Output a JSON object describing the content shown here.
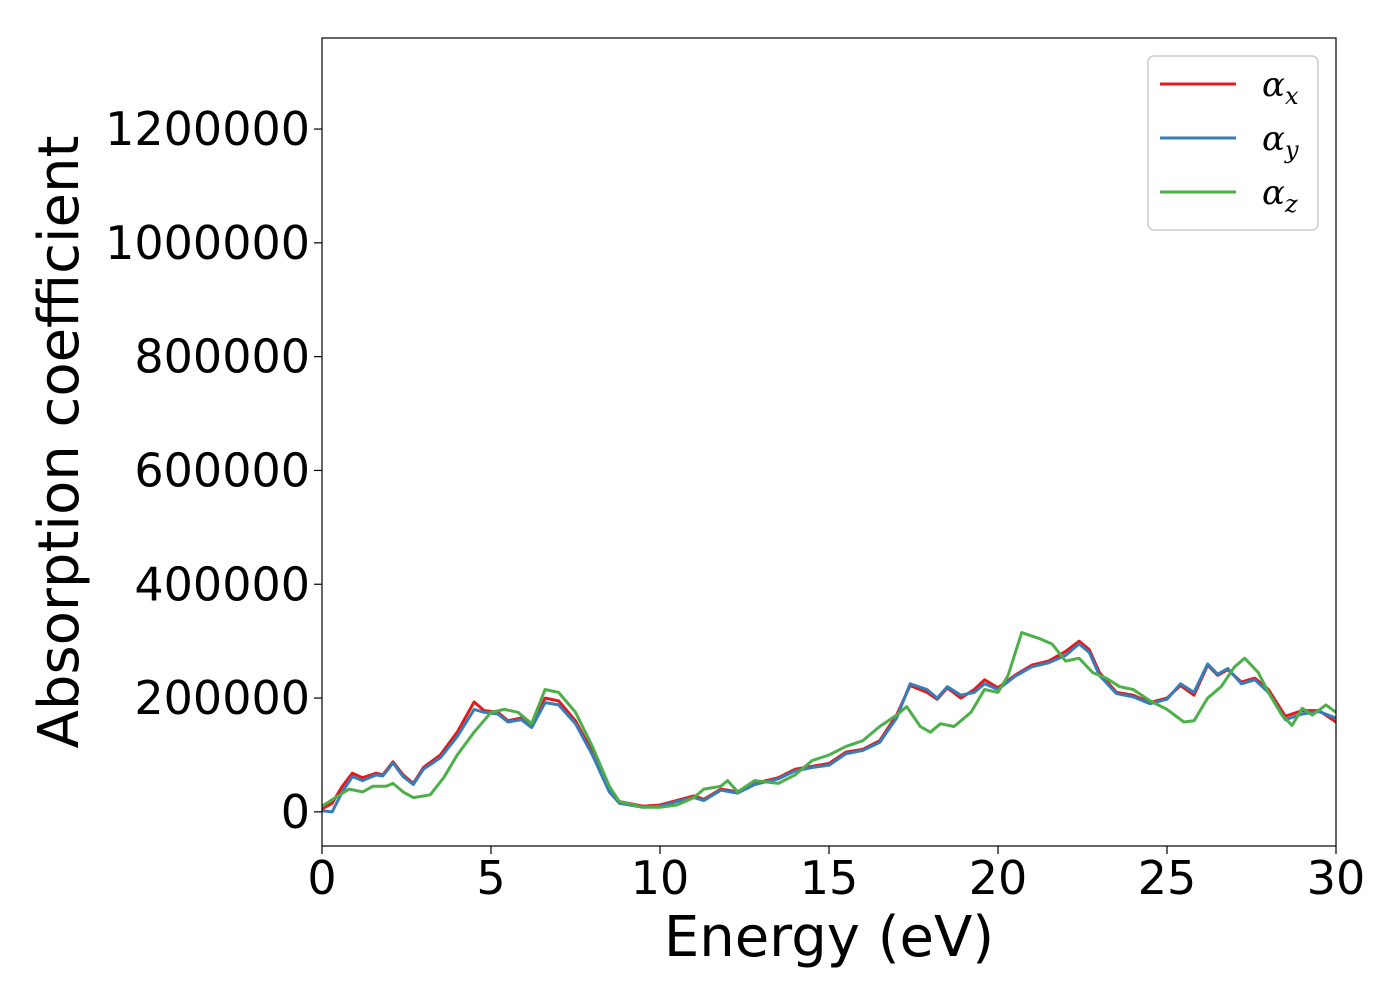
{
  "chart_data": {
    "type": "line",
    "title": "",
    "xlabel": "Energy (eV)",
    "ylabel": "Absorption coefficient",
    "xlim": [
      0,
      30
    ],
    "ylim": [
      -60000,
      1360000
    ],
    "x_ticks": [
      "0",
      "5",
      "10",
      "15",
      "20",
      "25",
      "30"
    ],
    "y_ticks": [
      "0",
      "200000",
      "400000",
      "600000",
      "800000",
      "1000000",
      "1200000"
    ],
    "grid": false,
    "legend_position": "top-right",
    "series": [
      {
        "name": "α_x",
        "label_base": "α",
        "label_sub": "x",
        "color": "#e41a1c",
        "points": [
          [
            0,
            5000
          ],
          [
            0.3,
            15000
          ],
          [
            0.6,
            45000
          ],
          [
            0.9,
            68000
          ],
          [
            1.2,
            60000
          ],
          [
            1.6,
            68000
          ],
          [
            1.8,
            65000
          ],
          [
            2.1,
            88000
          ],
          [
            2.4,
            65000
          ],
          [
            2.7,
            50000
          ],
          [
            3.0,
            78000
          ],
          [
            3.5,
            100000
          ],
          [
            4.0,
            140000
          ],
          [
            4.5,
            193000
          ],
          [
            4.8,
            178000
          ],
          [
            5.2,
            175000
          ],
          [
            5.5,
            160000
          ],
          [
            5.9,
            165000
          ],
          [
            6.2,
            150000
          ],
          [
            6.6,
            200000
          ],
          [
            7.0,
            195000
          ],
          [
            7.5,
            160000
          ],
          [
            8.0,
            105000
          ],
          [
            8.5,
            40000
          ],
          [
            8.8,
            18000
          ],
          [
            9.5,
            10000
          ],
          [
            10.0,
            12000
          ],
          [
            10.5,
            20000
          ],
          [
            11.0,
            28000
          ],
          [
            11.3,
            22000
          ],
          [
            11.8,
            40000
          ],
          [
            12.3,
            35000
          ],
          [
            12.8,
            50000
          ],
          [
            13.5,
            60000
          ],
          [
            14.0,
            75000
          ],
          [
            14.5,
            80000
          ],
          [
            15.0,
            85000
          ],
          [
            15.5,
            105000
          ],
          [
            16.0,
            110000
          ],
          [
            16.5,
            125000
          ],
          [
            17.0,
            170000
          ],
          [
            17.4,
            222000
          ],
          [
            17.9,
            210000
          ],
          [
            18.2,
            198000
          ],
          [
            18.5,
            218000
          ],
          [
            18.9,
            200000
          ],
          [
            19.3,
            215000
          ],
          [
            19.6,
            232000
          ],
          [
            20.0,
            218000
          ],
          [
            20.5,
            240000
          ],
          [
            21.0,
            258000
          ],
          [
            21.5,
            265000
          ],
          [
            22.0,
            282000
          ],
          [
            22.4,
            300000
          ],
          [
            22.7,
            285000
          ],
          [
            23.0,
            245000
          ],
          [
            23.5,
            210000
          ],
          [
            24.0,
            205000
          ],
          [
            24.5,
            192000
          ],
          [
            25.0,
            200000
          ],
          [
            25.4,
            222000
          ],
          [
            25.8,
            205000
          ],
          [
            26.2,
            258000
          ],
          [
            26.5,
            240000
          ],
          [
            26.8,
            250000
          ],
          [
            27.2,
            228000
          ],
          [
            27.6,
            235000
          ],
          [
            28.0,
            215000
          ],
          [
            28.5,
            168000
          ],
          [
            29.0,
            178000
          ],
          [
            29.5,
            178000
          ],
          [
            30.0,
            158000
          ]
        ]
      },
      {
        "name": "α_y",
        "label_base": "α",
        "label_sub": "y",
        "color": "#377eb8",
        "points": [
          [
            0,
            2000
          ],
          [
            0.3,
            0
          ],
          [
            0.6,
            35000
          ],
          [
            0.9,
            62000
          ],
          [
            1.2,
            55000
          ],
          [
            1.6,
            65000
          ],
          [
            1.8,
            63000
          ],
          [
            2.1,
            86000
          ],
          [
            2.4,
            62000
          ],
          [
            2.7,
            48000
          ],
          [
            3.0,
            75000
          ],
          [
            3.5,
            95000
          ],
          [
            4.0,
            132000
          ],
          [
            4.5,
            180000
          ],
          [
            4.8,
            175000
          ],
          [
            5.2,
            172000
          ],
          [
            5.5,
            158000
          ],
          [
            5.9,
            162000
          ],
          [
            6.2,
            148000
          ],
          [
            6.6,
            192000
          ],
          [
            7.0,
            188000
          ],
          [
            7.5,
            155000
          ],
          [
            8.0,
            100000
          ],
          [
            8.5,
            35000
          ],
          [
            8.8,
            15000
          ],
          [
            9.5,
            8000
          ],
          [
            10.0,
            10000
          ],
          [
            10.5,
            18000
          ],
          [
            11.0,
            25000
          ],
          [
            11.3,
            20000
          ],
          [
            11.8,
            38000
          ],
          [
            12.3,
            33000
          ],
          [
            12.8,
            48000
          ],
          [
            13.5,
            58000
          ],
          [
            14.0,
            72000
          ],
          [
            14.5,
            78000
          ],
          [
            15.0,
            82000
          ],
          [
            15.5,
            102000
          ],
          [
            16.0,
            108000
          ],
          [
            16.5,
            122000
          ],
          [
            17.0,
            165000
          ],
          [
            17.4,
            225000
          ],
          [
            17.9,
            215000
          ],
          [
            18.2,
            200000
          ],
          [
            18.5,
            220000
          ],
          [
            18.9,
            205000
          ],
          [
            19.3,
            210000
          ],
          [
            19.6,
            225000
          ],
          [
            20.0,
            215000
          ],
          [
            20.5,
            238000
          ],
          [
            21.0,
            255000
          ],
          [
            21.5,
            262000
          ],
          [
            22.0,
            275000
          ],
          [
            22.4,
            295000
          ],
          [
            22.7,
            280000
          ],
          [
            23.0,
            240000
          ],
          [
            23.5,
            208000
          ],
          [
            24.0,
            202000
          ],
          [
            24.5,
            190000
          ],
          [
            25.0,
            198000
          ],
          [
            25.4,
            225000
          ],
          [
            25.8,
            210000
          ],
          [
            26.2,
            260000
          ],
          [
            26.5,
            242000
          ],
          [
            26.8,
            252000
          ],
          [
            27.2,
            225000
          ],
          [
            27.6,
            232000
          ],
          [
            28.0,
            210000
          ],
          [
            28.5,
            162000
          ],
          [
            29.0,
            172000
          ],
          [
            29.5,
            176000
          ],
          [
            30.0,
            165000
          ]
        ]
      },
      {
        "name": "α_z",
        "label_base": "α",
        "label_sub": "z",
        "color": "#4daf4a",
        "points": [
          [
            0,
            10000
          ],
          [
            0.4,
            25000
          ],
          [
            0.8,
            40000
          ],
          [
            1.2,
            35000
          ],
          [
            1.5,
            45000
          ],
          [
            1.9,
            45000
          ],
          [
            2.1,
            50000
          ],
          [
            2.4,
            35000
          ],
          [
            2.7,
            25000
          ],
          [
            3.2,
            30000
          ],
          [
            3.6,
            60000
          ],
          [
            4.0,
            100000
          ],
          [
            4.5,
            140000
          ],
          [
            5.0,
            175000
          ],
          [
            5.4,
            180000
          ],
          [
            5.8,
            175000
          ],
          [
            6.2,
            155000
          ],
          [
            6.6,
            215000
          ],
          [
            7.0,
            210000
          ],
          [
            7.5,
            175000
          ],
          [
            8.0,
            115000
          ],
          [
            8.5,
            45000
          ],
          [
            8.8,
            18000
          ],
          [
            9.5,
            8000
          ],
          [
            10.0,
            8000
          ],
          [
            10.5,
            12000
          ],
          [
            11.0,
            25000
          ],
          [
            11.3,
            40000
          ],
          [
            11.8,
            45000
          ],
          [
            12.0,
            55000
          ],
          [
            12.3,
            35000
          ],
          [
            12.8,
            55000
          ],
          [
            13.5,
            50000
          ],
          [
            14.0,
            65000
          ],
          [
            14.5,
            90000
          ],
          [
            15.0,
            100000
          ],
          [
            15.5,
            115000
          ],
          [
            16.0,
            125000
          ],
          [
            16.5,
            150000
          ],
          [
            17.0,
            170000
          ],
          [
            17.3,
            185000
          ],
          [
            17.7,
            150000
          ],
          [
            18.0,
            140000
          ],
          [
            18.3,
            155000
          ],
          [
            18.7,
            150000
          ],
          [
            19.2,
            175000
          ],
          [
            19.6,
            215000
          ],
          [
            20.0,
            210000
          ],
          [
            20.3,
            240000
          ],
          [
            20.7,
            315000
          ],
          [
            21.2,
            305000
          ],
          [
            21.6,
            295000
          ],
          [
            22.0,
            265000
          ],
          [
            22.4,
            270000
          ],
          [
            22.8,
            245000
          ],
          [
            23.2,
            235000
          ],
          [
            23.6,
            220000
          ],
          [
            24.0,
            215000
          ],
          [
            24.5,
            195000
          ],
          [
            25.0,
            180000
          ],
          [
            25.5,
            158000
          ],
          [
            25.8,
            160000
          ],
          [
            26.2,
            200000
          ],
          [
            26.6,
            220000
          ],
          [
            27.0,
            255000
          ],
          [
            27.3,
            270000
          ],
          [
            27.7,
            245000
          ],
          [
            28.0,
            210000
          ],
          [
            28.4,
            170000
          ],
          [
            28.7,
            152000
          ],
          [
            29.0,
            182000
          ],
          [
            29.3,
            170000
          ],
          [
            29.7,
            188000
          ],
          [
            30.0,
            175000
          ]
        ]
      }
    ]
  }
}
